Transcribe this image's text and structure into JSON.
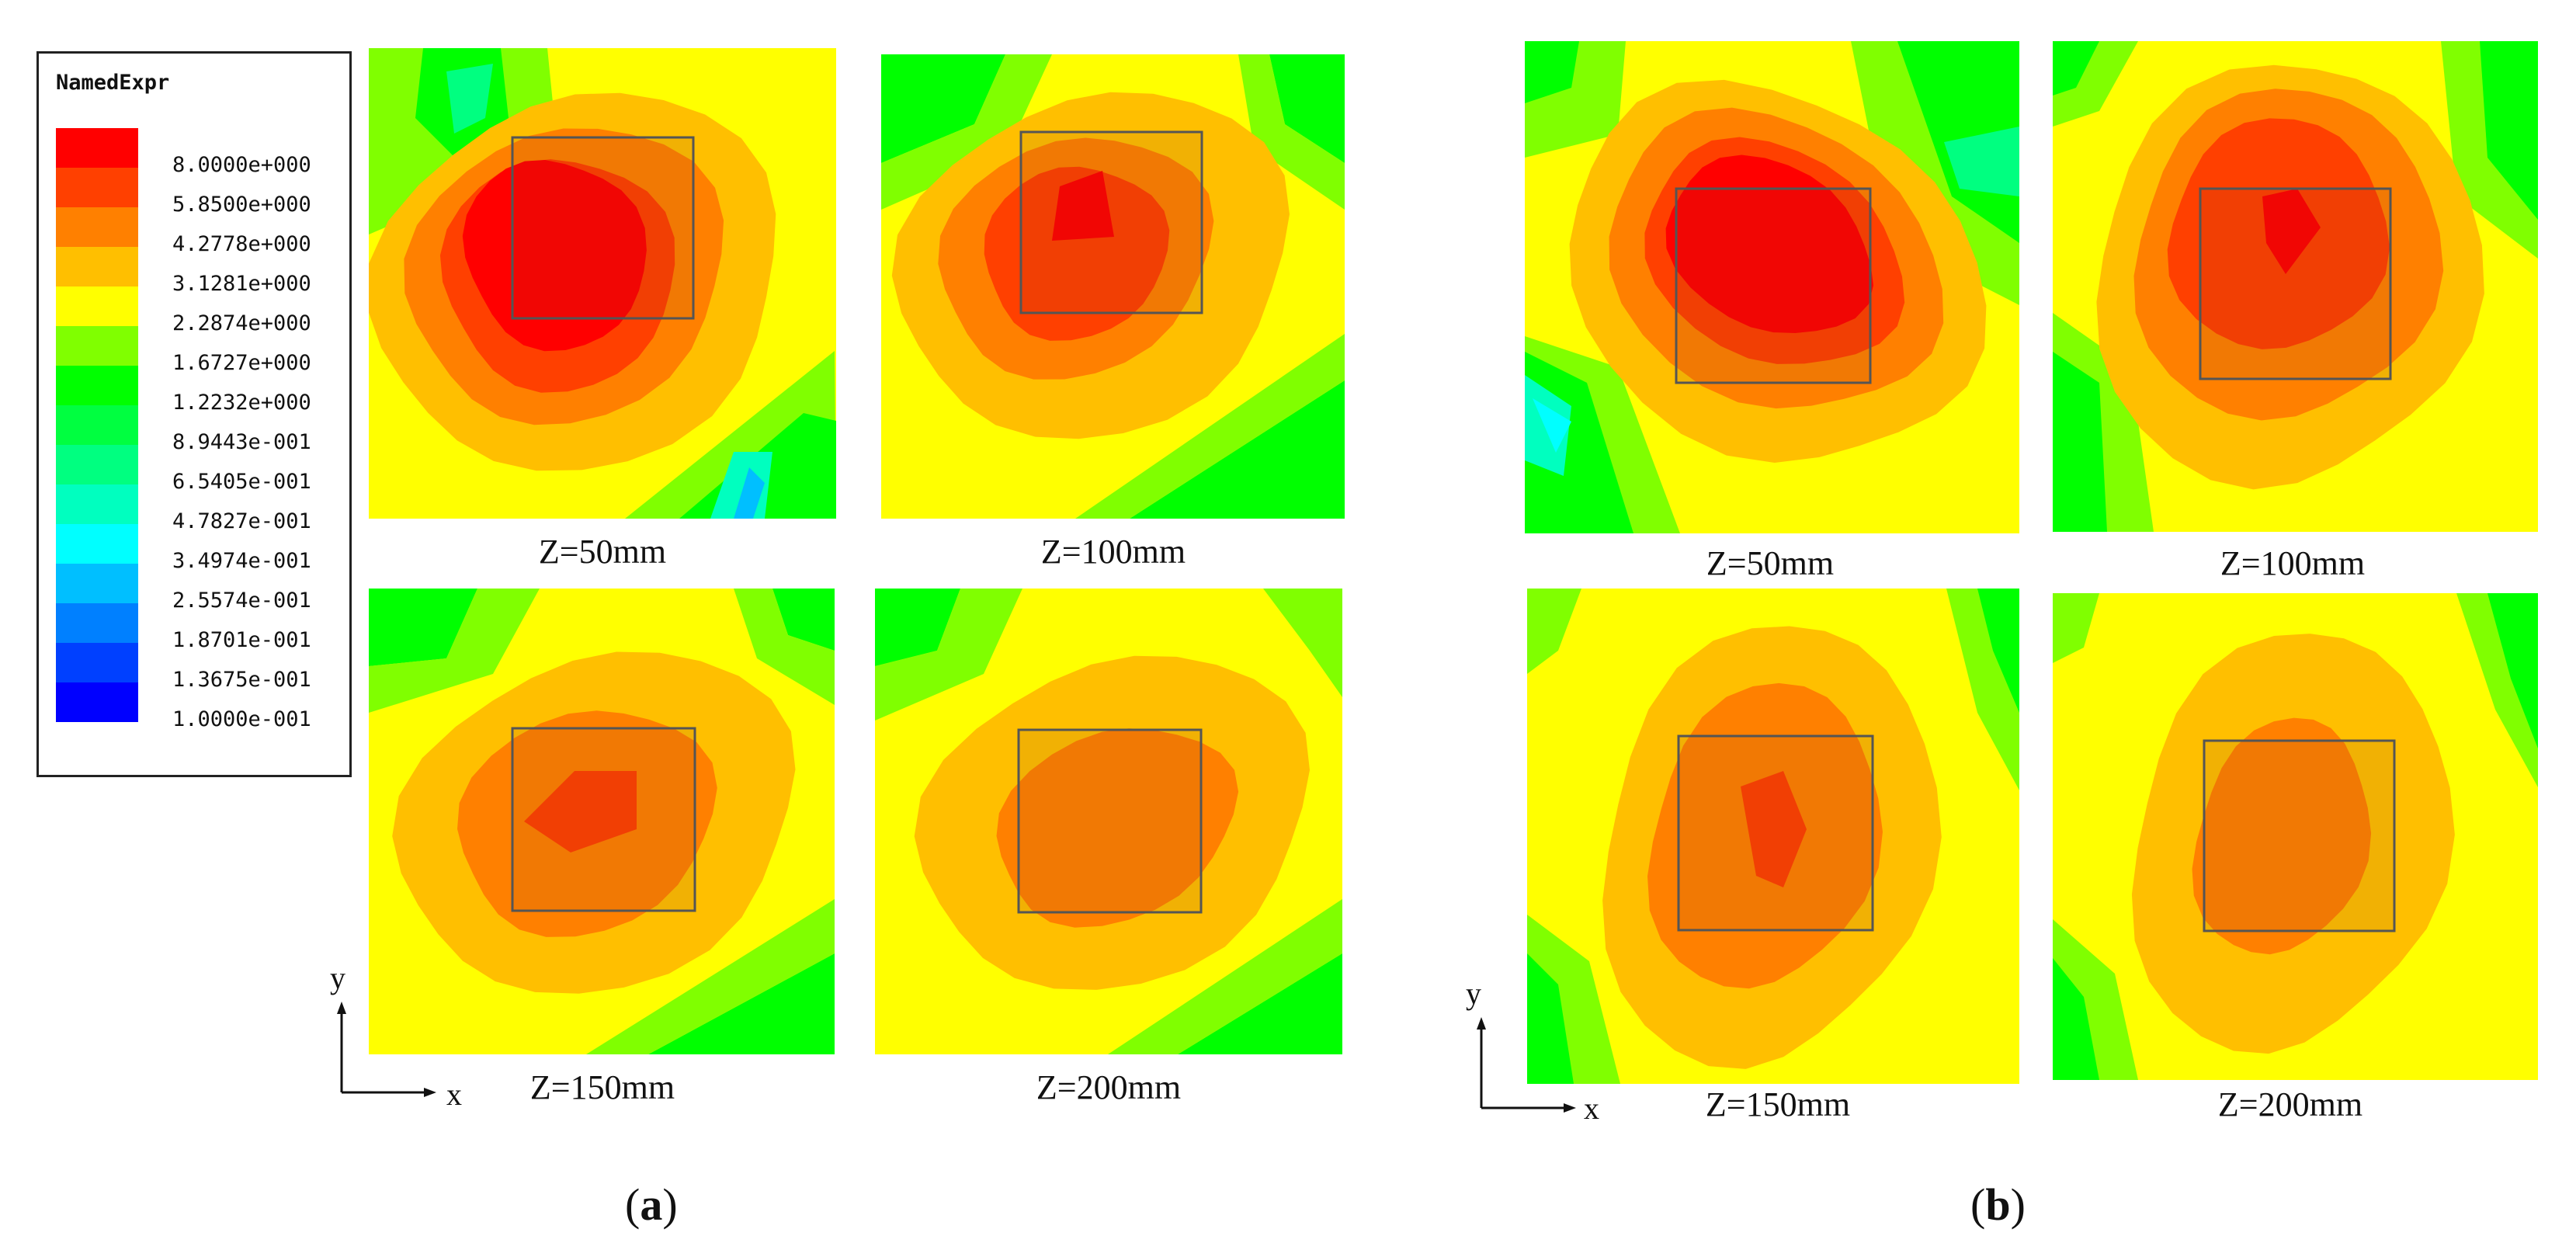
{
  "chart_data": {
    "type": "heatmap",
    "legend": {
      "title": "NamedExpr",
      "levels": [
        {
          "value": "8.0000e+000",
          "color": "#ff0000"
        },
        {
          "value": "5.8500e+000",
          "color": "#ff4000"
        },
        {
          "value": "4.2778e+000",
          "color": "#ff8000"
        },
        {
          "value": "3.1281e+000",
          "color": "#ffbf00"
        },
        {
          "value": "2.2874e+000",
          "color": "#ffff00"
        },
        {
          "value": "1.6727e+000",
          "color": "#80ff00"
        },
        {
          "value": "1.2232e+000",
          "color": "#00ff00"
        },
        {
          "value": "8.9443e-001",
          "color": "#00ff40"
        },
        {
          "value": "6.5405e-001",
          "color": "#00ff80"
        },
        {
          "value": "4.7827e-001",
          "color": "#00ffbf"
        },
        {
          "value": "3.4974e-001",
          "color": "#00ffff"
        },
        {
          "value": "2.5574e-001",
          "color": "#00bfff"
        },
        {
          "value": "1.8701e-001",
          "color": "#0080ff"
        },
        {
          "value": "1.3675e-001",
          "color": "#0040ff"
        },
        {
          "value": "1.0000e-001",
          "color": "#0000ff"
        }
      ]
    },
    "groups": [
      {
        "label": "a",
        "axes": {
          "x": "x",
          "y": "y"
        },
        "panels": [
          {
            "caption": "Z=50mm",
            "peak_level": "8.0000e+000"
          },
          {
            "caption": "Z=100mm",
            "peak_level": "5.8500e+000"
          },
          {
            "caption": "Z=150mm",
            "peak_level": "5.8500e+000"
          },
          {
            "caption": "Z=200mm",
            "peak_level": "4.2778e+000"
          }
        ]
      },
      {
        "label": "b",
        "axes": {
          "x": "x",
          "y": "y"
        },
        "panels": [
          {
            "caption": "Z=50mm",
            "peak_level": "8.0000e+000"
          },
          {
            "caption": "Z=100mm",
            "peak_level": "8.0000e+000"
          },
          {
            "caption": "Z=150mm",
            "peak_level": "5.8500e+000"
          },
          {
            "caption": "Z=200mm",
            "peak_level": "4.2778e+000"
          }
        ]
      }
    ]
  }
}
